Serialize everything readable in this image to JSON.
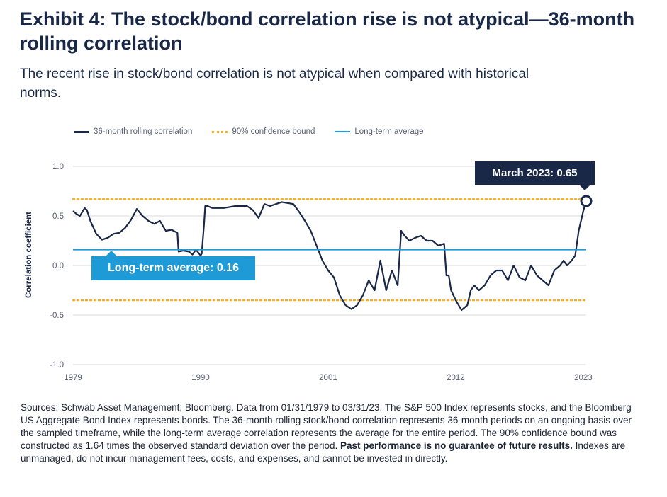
{
  "header": {
    "title": "Exhibit 4: The stock/bond correlation rise is not atypical—36-month rolling correlation",
    "subtitle": "The recent rise in stock/bond correlation is not atypical when compared with historical norms."
  },
  "legend": [
    {
      "label": "36-month rolling correlation",
      "style": "line"
    },
    {
      "label": "90% confidence bound",
      "style": "conf"
    },
    {
      "label": "Long-term average",
      "style": "avg"
    }
  ],
  "annotations": {
    "latest": "March 2023: 0.65",
    "average": "Long-term average: 0.16"
  },
  "footnote": {
    "text1": "Sources: Schwab Asset Management; Bloomberg. Data from 01/31/1979 to 03/31/23. The S&P 500 Index represents stocks, and the Bloomberg US Aggregate Bond Index represents bonds. The 36-month rolling stock/bond correlation represents 36-month periods on an ongoing basis over the sampled timeframe, while the long-term average correlation represents the average for the entire period. The 90% confidence bound was constructed as 1.64 times the observed standard deviation over the period. ",
    "bold": "Past performance is no guarantee of future results.",
    "text2": " Indexes are unmanaged, do not incur management fees, costs, and expenses, and cannot be invested in directly."
  },
  "colors": {
    "series": "#1a2847",
    "confidence": "#f2b027",
    "average": "#1e9ad6",
    "grid": "#d9d9d9",
    "text": "#1a2847"
  },
  "chart_data": {
    "type": "line",
    "ylabel": "Correlation coefficient",
    "ylim": [
      -1.0,
      1.0
    ],
    "xlim": [
      1979,
      2023.25
    ],
    "y_ticks": [
      {
        "value": 1.0,
        "label": "1.0"
      },
      {
        "value": 0.5,
        "label": "0.5"
      },
      {
        "value": 0.0,
        "label": "0.0"
      },
      {
        "value": -0.5,
        "label": "-0.5"
      },
      {
        "value": -1.0,
        "label": "-1.0"
      }
    ],
    "x_ticks": [
      {
        "value": 1979,
        "label": "1979"
      },
      {
        "value": 1990,
        "label": "1990"
      },
      {
        "value": 2001,
        "label": "2001"
      },
      {
        "value": 2012,
        "label": "2012"
      },
      {
        "value": 2023,
        "label": "2023"
      }
    ],
    "grid": true,
    "legend_position": "top-left",
    "reference_lines": {
      "long_term_average": 0.16,
      "confidence_upper": 0.67,
      "confidence_lower": -0.35
    },
    "highlight": {
      "x": 2023.25,
      "y": 0.65
    },
    "series": [
      {
        "name": "36-month rolling correlation",
        "x": [
          1979,
          1979.3,
          1979.6,
          1980,
          1980.2,
          1980.5,
          1981,
          1981.5,
          1982,
          1982.5,
          1983,
          1983.5,
          1984,
          1984.5,
          1985,
          1985.5,
          1986,
          1986.5,
          1987,
          1987.5,
          1988,
          1988.1,
          1988.5,
          1989,
          1989.3,
          1989.6,
          1990,
          1990.1,
          1990.3,
          1990.4,
          1990.6,
          1991,
          1992,
          1993,
          1994,
          1994.5,
          1995,
          1995.5,
          1996,
          1997,
          1998,
          1998.5,
          1999,
          1999.5,
          2000,
          2000.5,
          2001,
          2001.5,
          2002,
          2002.5,
          2003,
          2003.5,
          2004,
          2004.5,
          2005,
          2005.5,
          2006,
          2006.5,
          2007,
          2007.3,
          2007.6,
          2008,
          2008.5,
          2009,
          2009.5,
          2010,
          2010.5,
          2011,
          2011.2,
          2011.4,
          2011.6,
          2012,
          2012.5,
          2013,
          2013.3,
          2013.6,
          2014,
          2014.5,
          2015,
          2015.5,
          2016,
          2016.5,
          2017,
          2017.5,
          2018,
          2018.5,
          2019,
          2019.5,
          2020,
          2020.5,
          2021,
          2021.3,
          2021.6,
          2022,
          2022.3,
          2022.6,
          2022.9,
          2023,
          2023.25
        ],
        "y": [
          0.55,
          0.52,
          0.5,
          0.58,
          0.56,
          0.45,
          0.32,
          0.26,
          0.28,
          0.32,
          0.33,
          0.38,
          0.46,
          0.57,
          0.5,
          0.45,
          0.42,
          0.45,
          0.35,
          0.36,
          0.33,
          0.14,
          0.15,
          0.14,
          0.11,
          0.16,
          0.1,
          0.12,
          0.42,
          0.6,
          0.6,
          0.58,
          0.58,
          0.6,
          0.6,
          0.56,
          0.48,
          0.62,
          0.6,
          0.64,
          0.62,
          0.54,
          0.45,
          0.35,
          0.2,
          0.05,
          -0.05,
          -0.12,
          -0.3,
          -0.4,
          -0.44,
          -0.4,
          -0.3,
          -0.15,
          -0.25,
          0.05,
          -0.25,
          -0.05,
          -0.2,
          0.35,
          0.3,
          0.25,
          0.28,
          0.3,
          0.25,
          0.25,
          0.2,
          0.22,
          -0.1,
          -0.1,
          -0.25,
          -0.35,
          -0.45,
          -0.4,
          -0.25,
          -0.2,
          -0.25,
          -0.2,
          -0.1,
          -0.05,
          -0.05,
          -0.15,
          0.0,
          -0.12,
          -0.15,
          0.0,
          -0.1,
          -0.15,
          -0.2,
          -0.05,
          0.0,
          0.05,
          0.0,
          0.05,
          0.1,
          0.35,
          0.5,
          0.55,
          0.65
        ]
      }
    ]
  }
}
